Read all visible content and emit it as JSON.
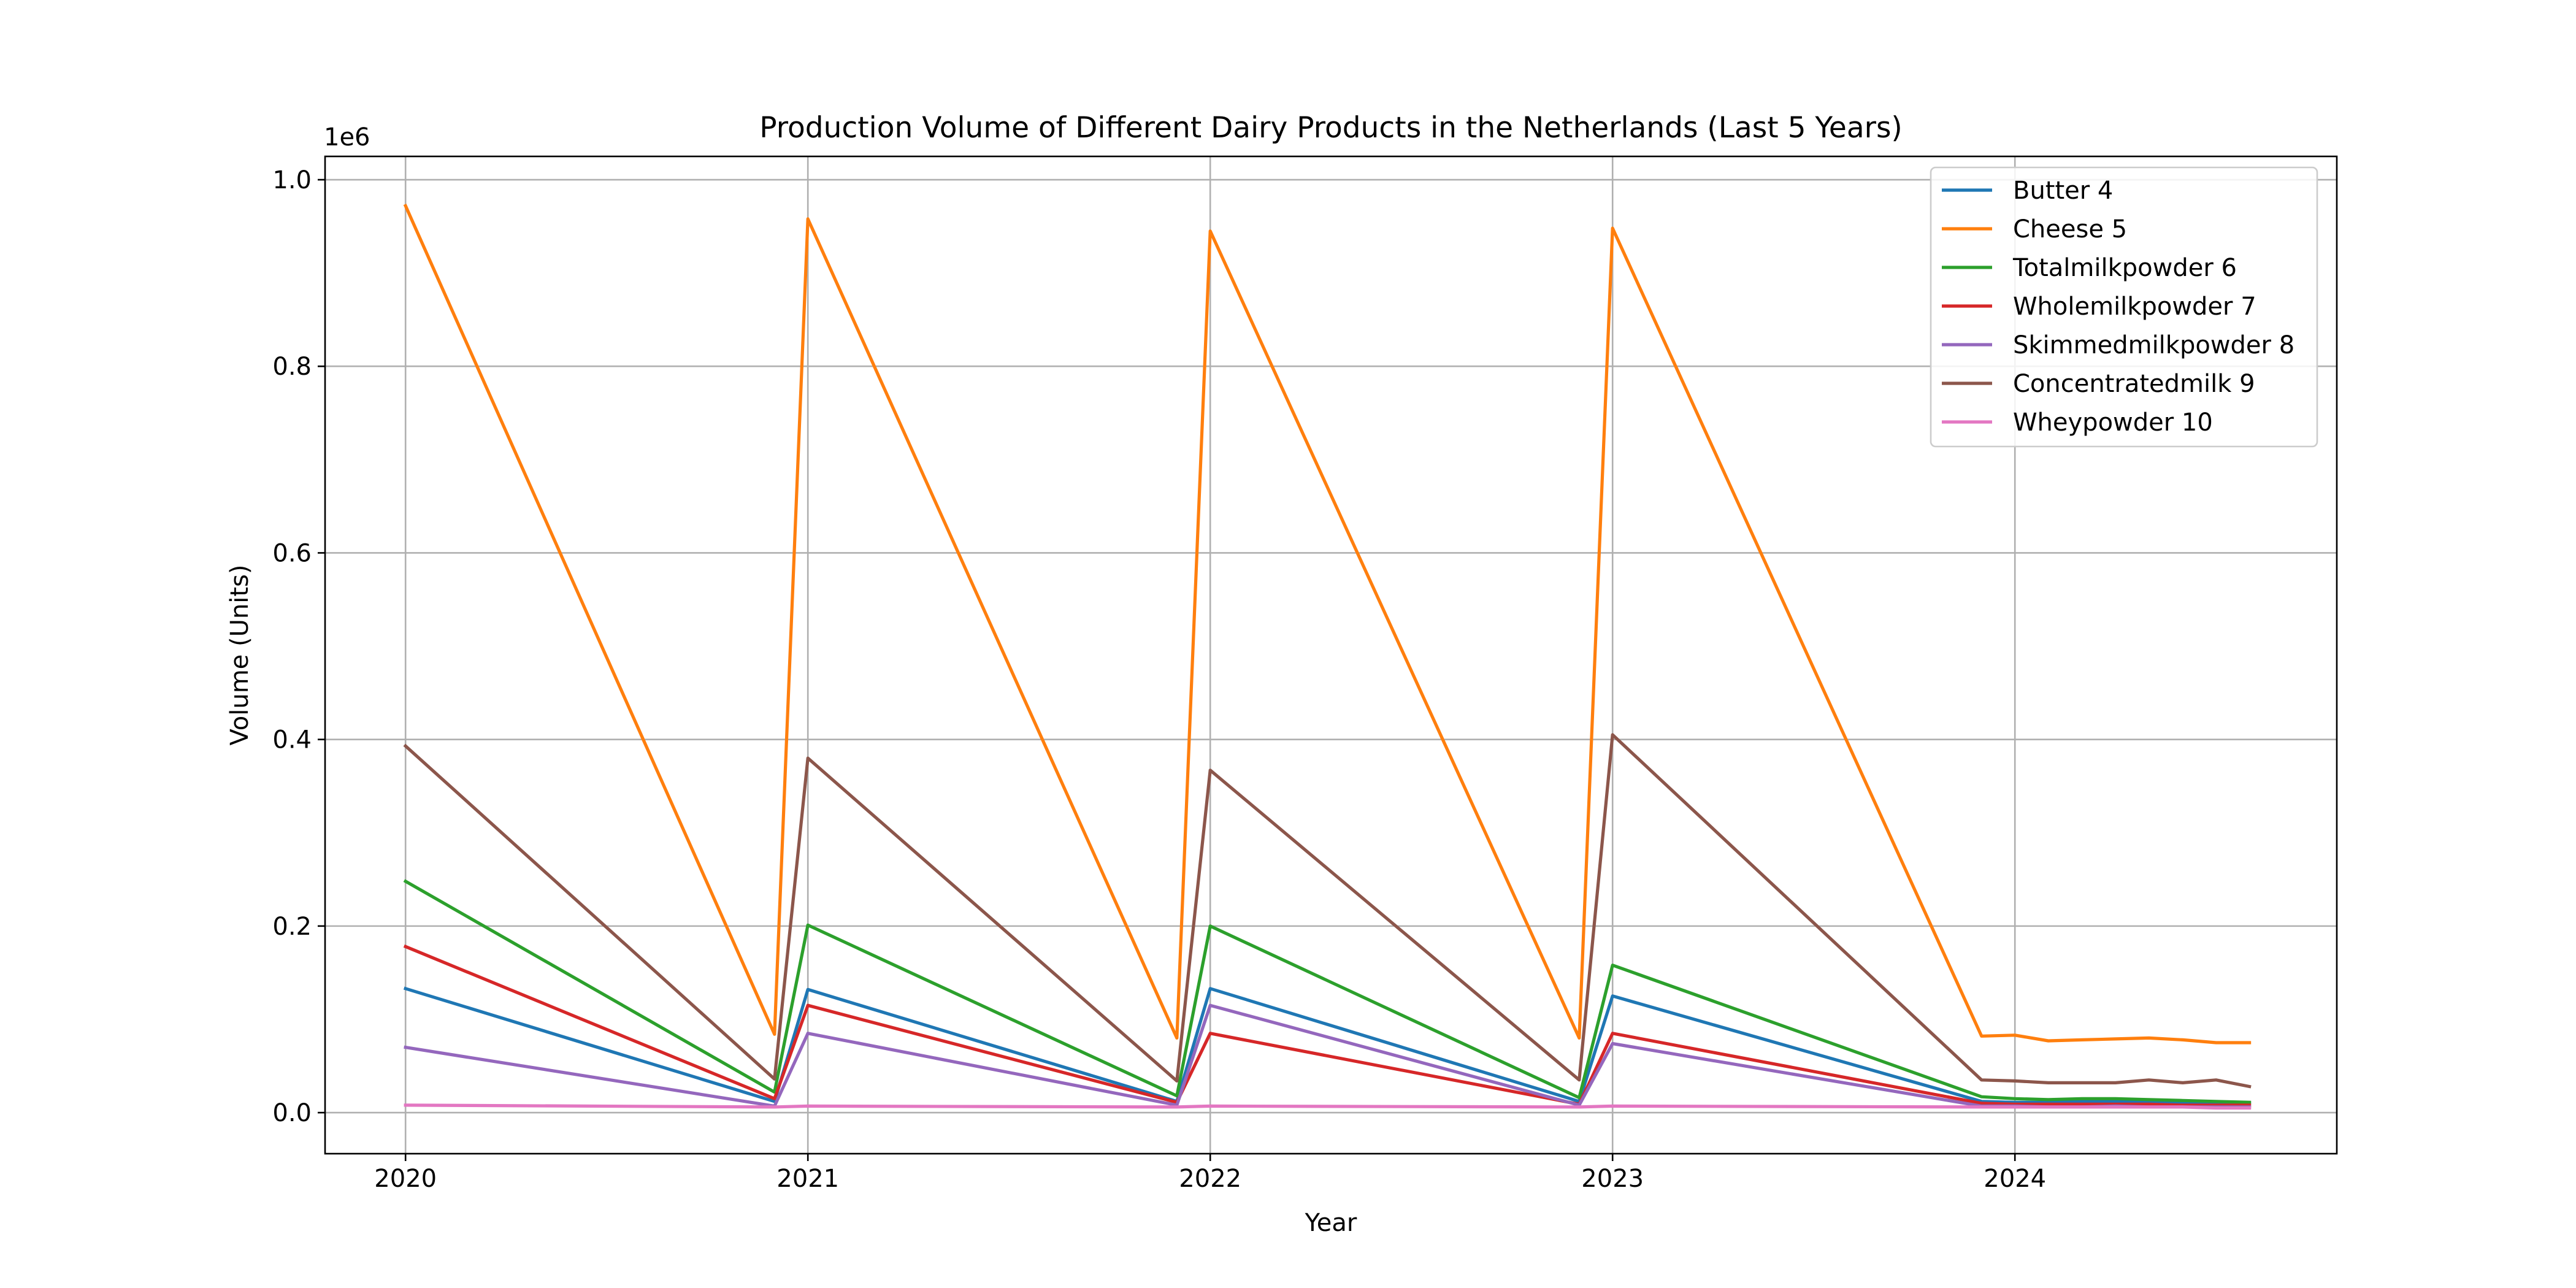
{
  "chart_data": {
    "type": "line",
    "title": "Production Volume of Different Dairy Products in the Netherlands (Last 5 Years)",
    "xlabel": "Year",
    "ylabel": "Volume (Units)",
    "y_scale_label": "1e6",
    "xlim": [
      2019.8,
      2024.8
    ],
    "ylim": [
      -0.044,
      1.025
    ],
    "x_ticks": [
      2020,
      2021,
      2022,
      2023,
      2024
    ],
    "x_tick_labels": [
      "2020",
      "2021",
      "2022",
      "2023",
      "2024"
    ],
    "y_ticks": [
      0.0,
      0.2,
      0.4,
      0.6,
      0.8,
      1.0
    ],
    "y_tick_labels": [
      "0.0",
      "0.2",
      "0.4",
      "0.6",
      "0.8",
      "1.0"
    ],
    "grid": true,
    "legend_position": "top-right",
    "series": [
      {
        "name": "Butter 4",
        "color": "#1f77b4",
        "x": [
          2020.0,
          2020.917,
          2021.0,
          2021.917,
          2022.0,
          2022.917,
          2023.0,
          2023.917,
          2024.0,
          2024.083,
          2024.167,
          2024.25,
          2024.333,
          2024.417,
          2024.5,
          2024.583
        ],
        "y": [
          0.133,
          0.012,
          0.132,
          0.012,
          0.133,
          0.012,
          0.125,
          0.012,
          0.011,
          0.011,
          0.012,
          0.012,
          0.012,
          0.011,
          0.01,
          0.01
        ]
      },
      {
        "name": "Cheese 5",
        "color": "#ff7f0e",
        "x": [
          2020.0,
          2020.917,
          2021.0,
          2021.917,
          2022.0,
          2022.917,
          2023.0,
          2023.917,
          2024.0,
          2024.083,
          2024.167,
          2024.25,
          2024.333,
          2024.417,
          2024.5,
          2024.583
        ],
        "y": [
          0.972,
          0.084,
          0.958,
          0.08,
          0.945,
          0.08,
          0.948,
          0.082,
          0.083,
          0.077,
          0.078,
          0.079,
          0.08,
          0.078,
          0.075,
          0.075
        ]
      },
      {
        "name": "Totalmilkpowder 6",
        "color": "#2ca02c",
        "x": [
          2020.0,
          2020.917,
          2021.0,
          2021.917,
          2022.0,
          2022.917,
          2023.0,
          2023.917,
          2024.0,
          2024.083,
          2024.167,
          2024.25,
          2024.333,
          2024.417,
          2024.5,
          2024.583
        ],
        "y": [
          0.248,
          0.022,
          0.201,
          0.018,
          0.2,
          0.016,
          0.158,
          0.017,
          0.015,
          0.014,
          0.015,
          0.015,
          0.014,
          0.013,
          0.012,
          0.011
        ]
      },
      {
        "name": "Wholemilkpowder 7",
        "color": "#d62728",
        "x": [
          2020.0,
          2020.917,
          2021.0,
          2021.917,
          2022.0,
          2022.917,
          2023.0,
          2023.917,
          2024.0,
          2024.083,
          2024.167,
          2024.25,
          2024.333,
          2024.417,
          2024.5,
          2024.583
        ],
        "y": [
          0.178,
          0.015,
          0.115,
          0.011,
          0.085,
          0.009,
          0.085,
          0.01,
          0.009,
          0.009,
          0.009,
          0.009,
          0.009,
          0.008,
          0.008,
          0.008
        ]
      },
      {
        "name": "Skimmedmilkpowder 8",
        "color": "#9467bd",
        "x": [
          2020.0,
          2020.917,
          2021.0,
          2021.917,
          2022.0,
          2022.917,
          2023.0,
          2023.917,
          2024.0,
          2024.083,
          2024.167,
          2024.25,
          2024.333,
          2024.417,
          2024.5,
          2024.583
        ],
        "y": [
          0.07,
          0.007,
          0.085,
          0.008,
          0.115,
          0.008,
          0.074,
          0.007,
          0.007,
          0.006,
          0.006,
          0.007,
          0.006,
          0.006,
          0.006,
          0.006
        ]
      },
      {
        "name": "Concentratedmilk 9",
        "color": "#8c564b",
        "x": [
          2020.0,
          2020.917,
          2021.0,
          2021.917,
          2022.0,
          2022.917,
          2023.0,
          2023.917,
          2024.0,
          2024.083,
          2024.167,
          2024.25,
          2024.333,
          2024.417,
          2024.5,
          2024.583
        ],
        "y": [
          0.393,
          0.036,
          0.38,
          0.034,
          0.367,
          0.035,
          0.405,
          0.035,
          0.034,
          0.032,
          0.032,
          0.032,
          0.035,
          0.032,
          0.035,
          0.028
        ]
      },
      {
        "name": "Wheypowder 10",
        "color": "#e377c2",
        "x": [
          2020.0,
          2020.917,
          2021.0,
          2021.917,
          2022.0,
          2022.917,
          2023.0,
          2023.917,
          2024.0,
          2024.083,
          2024.167,
          2024.25,
          2024.333,
          2024.417,
          2024.5,
          2024.583
        ],
        "y": [
          0.008,
          0.006,
          0.007,
          0.006,
          0.007,
          0.006,
          0.007,
          0.006,
          0.006,
          0.006,
          0.006,
          0.006,
          0.006,
          0.006,
          0.005,
          0.005
        ]
      }
    ]
  }
}
